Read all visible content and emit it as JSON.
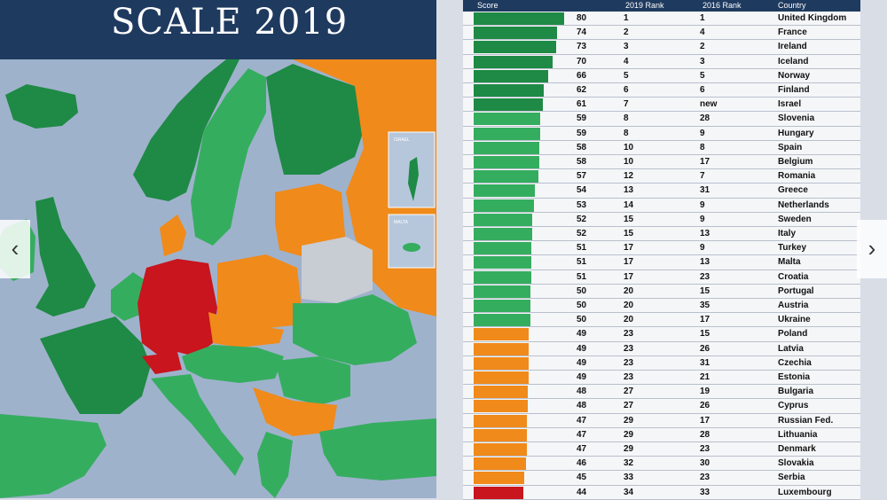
{
  "title": "SCALE 2019",
  "insets": {
    "israel": "ISRAEL",
    "malta": "MALTA"
  },
  "nav": {
    "prev": "‹",
    "next": "›"
  },
  "colors": {
    "dark_green": "#1e8a45",
    "green": "#35ad5f",
    "orange": "#f08a1a",
    "red": "#c8151e",
    "gray": "#c8ccd3",
    "sea": "#9fb2cc",
    "navy": "#1f3a5f"
  },
  "chart_data": {
    "type": "table",
    "title": "SCALE 2019",
    "columns": [
      "Score",
      "2019 Rank",
      "2016 Rank",
      "Country"
    ],
    "score_max": 80,
    "rows": [
      {
        "score": 80,
        "rank2019": "1",
        "rank2016": "1",
        "country": "United Kingdom",
        "color": "dark_green"
      },
      {
        "score": 74,
        "rank2019": "2",
        "rank2016": "4",
        "country": "France",
        "color": "dark_green"
      },
      {
        "score": 73,
        "rank2019": "3",
        "rank2016": "2",
        "country": "Ireland",
        "color": "dark_green"
      },
      {
        "score": 70,
        "rank2019": "4",
        "rank2016": "3",
        "country": "Iceland",
        "color": "dark_green"
      },
      {
        "score": 66,
        "rank2019": "5",
        "rank2016": "5",
        "country": "Norway",
        "color": "dark_green"
      },
      {
        "score": 62,
        "rank2019": "6",
        "rank2016": "6",
        "country": "Finland",
        "color": "dark_green"
      },
      {
        "score": 61,
        "rank2019": "7",
        "rank2016": "new",
        "country": "Israel",
        "color": "dark_green"
      },
      {
        "score": 59,
        "rank2019": "8",
        "rank2016": "28",
        "country": "Slovenia",
        "color": "green"
      },
      {
        "score": 59,
        "rank2019": "8",
        "rank2016": "9",
        "country": "Hungary",
        "color": "green"
      },
      {
        "score": 58,
        "rank2019": "10",
        "rank2016": "8",
        "country": "Spain",
        "color": "green"
      },
      {
        "score": 58,
        "rank2019": "10",
        "rank2016": "17",
        "country": "Belgium",
        "color": "green"
      },
      {
        "score": 57,
        "rank2019": "12",
        "rank2016": "7",
        "country": "Romania",
        "color": "green"
      },
      {
        "score": 54,
        "rank2019": "13",
        "rank2016": "31",
        "country": "Greece",
        "color": "green"
      },
      {
        "score": 53,
        "rank2019": "14",
        "rank2016": "9",
        "country": "Netherlands",
        "color": "green"
      },
      {
        "score": 52,
        "rank2019": "15",
        "rank2016": "9",
        "country": "Sweden",
        "color": "green"
      },
      {
        "score": 52,
        "rank2019": "15",
        "rank2016": "13",
        "country": "Italy",
        "color": "green"
      },
      {
        "score": 51,
        "rank2019": "17",
        "rank2016": "9",
        "country": "Turkey",
        "color": "green"
      },
      {
        "score": 51,
        "rank2019": "17",
        "rank2016": "13",
        "country": "Malta",
        "color": "green"
      },
      {
        "score": 51,
        "rank2019": "17",
        "rank2016": "23",
        "country": "Croatia",
        "color": "green"
      },
      {
        "score": 50,
        "rank2019": "20",
        "rank2016": "15",
        "country": "Portugal",
        "color": "green"
      },
      {
        "score": 50,
        "rank2019": "20",
        "rank2016": "35",
        "country": "Austria",
        "color": "green"
      },
      {
        "score": 50,
        "rank2019": "20",
        "rank2016": "17",
        "country": "Ukraine",
        "color": "green"
      },
      {
        "score": 49,
        "rank2019": "23",
        "rank2016": "15",
        "country": "Poland",
        "color": "orange"
      },
      {
        "score": 49,
        "rank2019": "23",
        "rank2016": "26",
        "country": "Latvia",
        "color": "orange"
      },
      {
        "score": 49,
        "rank2019": "23",
        "rank2016": "31",
        "country": "Czechia",
        "color": "orange"
      },
      {
        "score": 49,
        "rank2019": "23",
        "rank2016": "21",
        "country": "Estonia",
        "color": "orange"
      },
      {
        "score": 48,
        "rank2019": "27",
        "rank2016": "19",
        "country": "Bulgaria",
        "color": "orange"
      },
      {
        "score": 48,
        "rank2019": "27",
        "rank2016": "26",
        "country": "Cyprus",
        "color": "orange"
      },
      {
        "score": 47,
        "rank2019": "29",
        "rank2016": "17",
        "country": "Russian Fed.",
        "color": "orange"
      },
      {
        "score": 47,
        "rank2019": "29",
        "rank2016": "28",
        "country": "Lithuania",
        "color": "orange"
      },
      {
        "score": 47,
        "rank2019": "29",
        "rank2016": "23",
        "country": "Denmark",
        "color": "orange"
      },
      {
        "score": 46,
        "rank2019": "32",
        "rank2016": "30",
        "country": "Slovakia",
        "color": "orange"
      },
      {
        "score": 45,
        "rank2019": "33",
        "rank2016": "23",
        "country": "Serbia",
        "color": "orange"
      },
      {
        "score": 44,
        "rank2019": "34",
        "rank2016": "33",
        "country": "Luxembourg",
        "color": "red"
      }
    ]
  }
}
